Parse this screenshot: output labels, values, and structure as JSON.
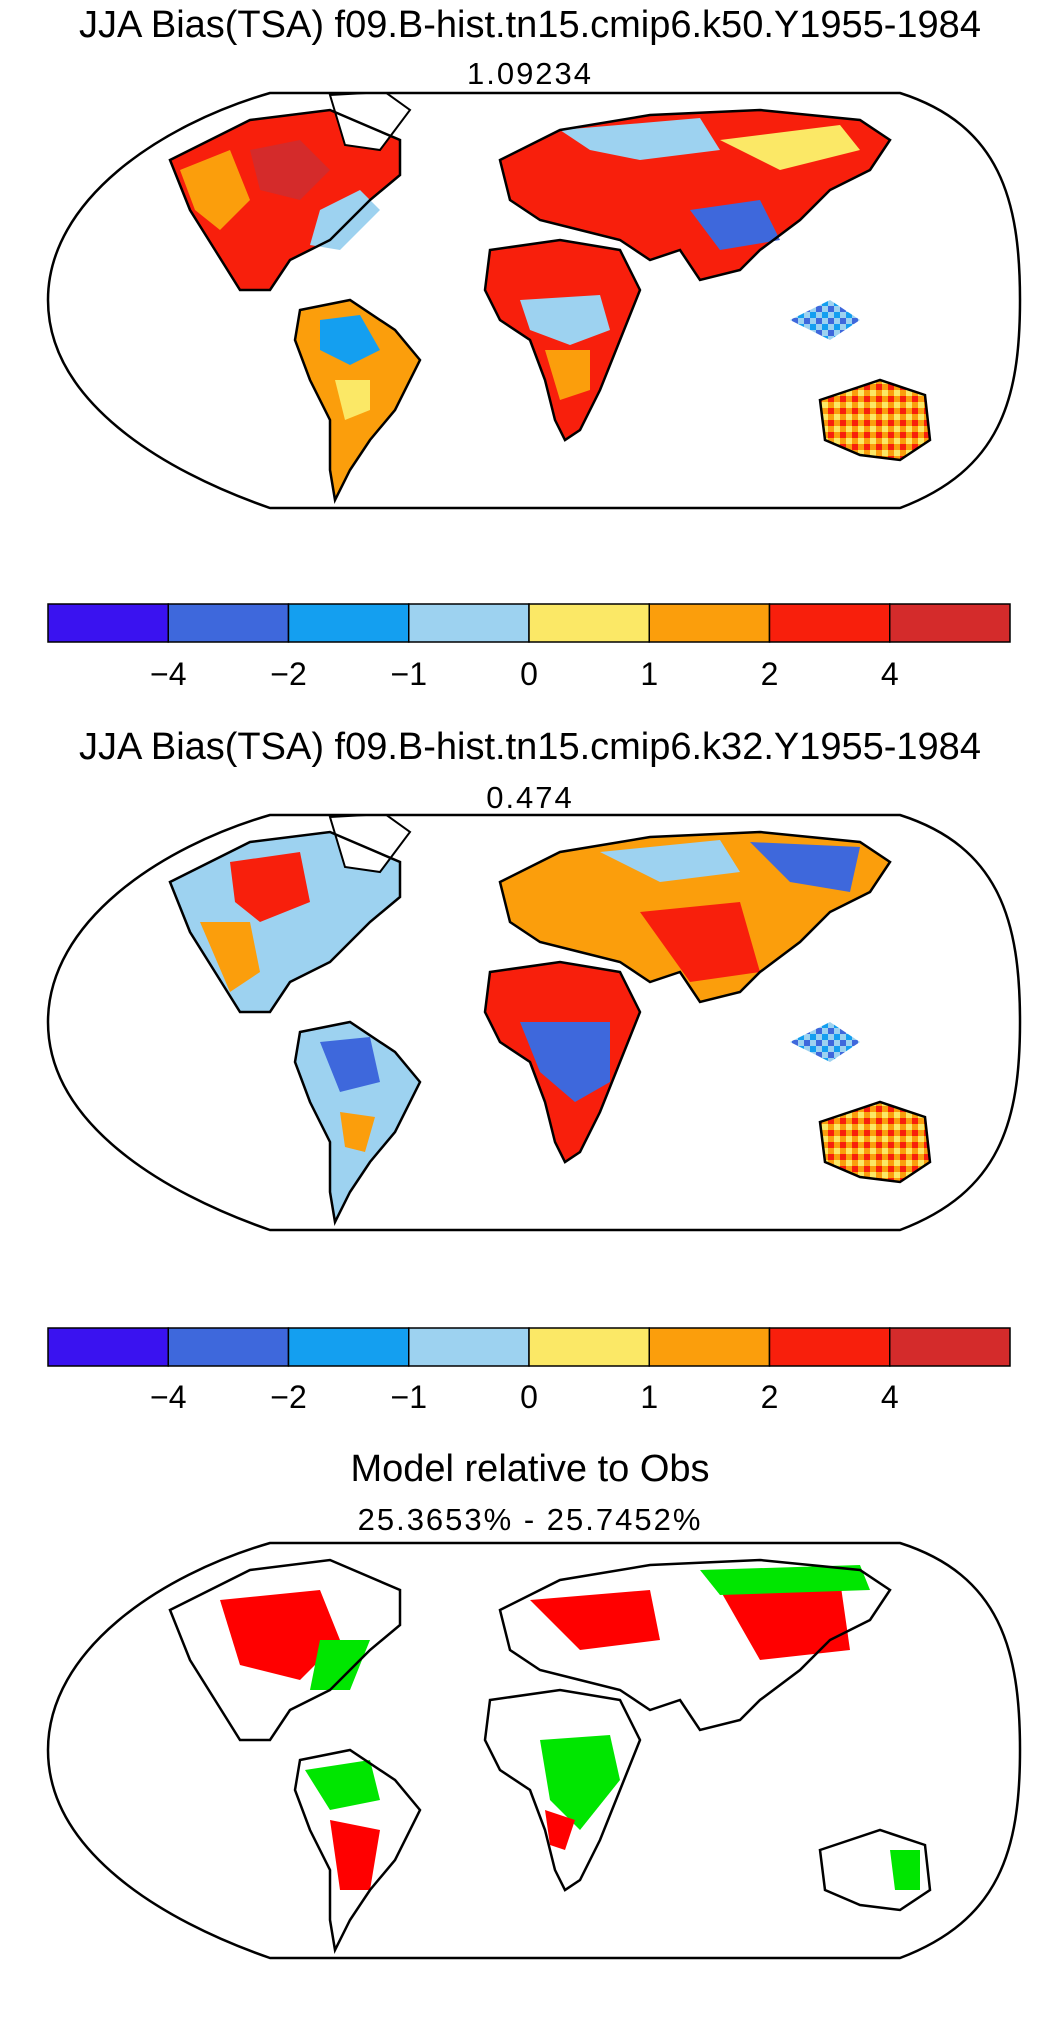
{
  "panels": [
    {
      "title": "JJA Bias(TSA) f09.B-hist.tn15.cmip6.k50.Y1955-1984",
      "value": "1.09234"
    },
    {
      "title": "JJA Bias(TSA) f09.B-hist.tn15.cmip6.k32.Y1955-1984",
      "value": "0.474"
    },
    {
      "title": "Model relative to Obs",
      "value": "25.3653% - 25.7452%"
    }
  ],
  "colorbar": {
    "colors": [
      "#3a12f0",
      "#3e68dc",
      "#149ff0",
      "#9dd2f0",
      "#fbe866",
      "#fb9e0c",
      "#f81f0c",
      "#d42b2b"
    ],
    "labels": [
      "−4",
      "−2",
      "−1",
      "0",
      "1",
      "2",
      "4"
    ]
  },
  "comparison_colors": [
    "#ff0000",
    "#00e600"
  ]
}
